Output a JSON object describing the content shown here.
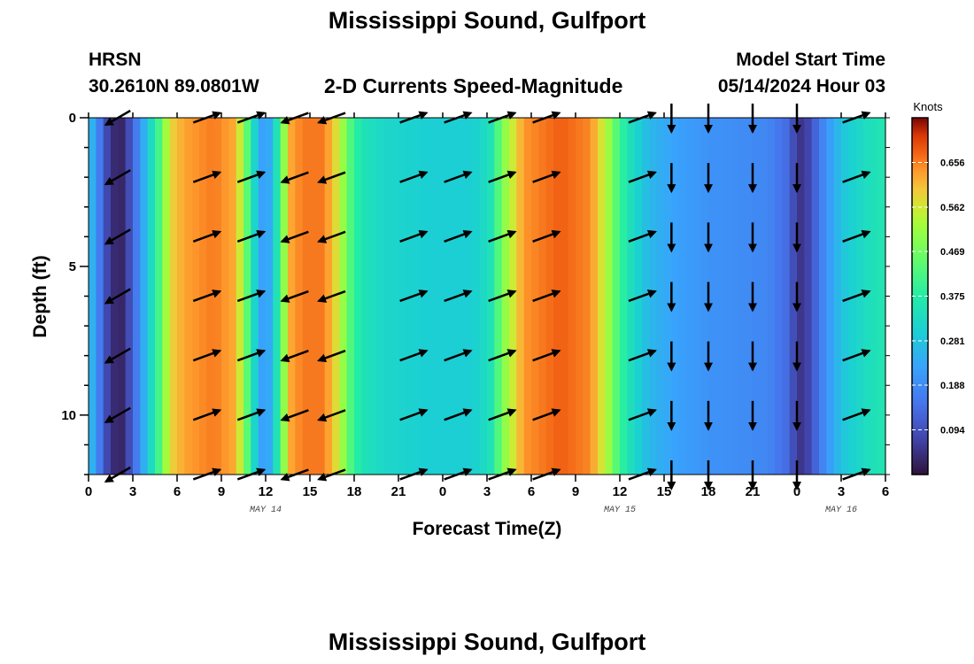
{
  "title": "Mississippi Sound, Gulfport",
  "bottom_title": "Mississippi Sound, Gulfport",
  "station": {
    "id": "HRSN",
    "coords": "30.2610N  89.0801W"
  },
  "subtitle": "2-D Currents Speed-Magnitude",
  "model_start": {
    "label": "Model Start Time",
    "value": "05/14/2024 Hour 03"
  },
  "chart_data": {
    "type": "heatmap",
    "xlabel": "Forecast Time(Z)",
    "ylabel": "Depth (ft)",
    "x_ticks": [
      "0",
      "3",
      "6",
      "9",
      "12",
      "15",
      "18",
      "21",
      "0",
      "3",
      "6",
      "9",
      "12",
      "15",
      "18",
      "21",
      "0",
      "3",
      "6"
    ],
    "date_labels": [
      {
        "text": "MAY 14",
        "hour": 12
      },
      {
        "text": "MAY 15",
        "hour": 36
      },
      {
        "text": "MAY 16",
        "hour": 51
      }
    ],
    "xlim": [
      0,
      54
    ],
    "y_ticks": [
      "0",
      "5",
      "10"
    ],
    "ylim": [
      0,
      12
    ],
    "colorbar": {
      "unit": "Knots",
      "range": [
        0,
        0.75
      ],
      "ticks": [
        "0.656",
        "0.562",
        "0.469",
        "0.375",
        "0.281",
        "0.188",
        "0.094"
      ]
    },
    "speed_profile_knots": [
      [
        0,
        0.3
      ],
      [
        0.4,
        0.22
      ],
      [
        1.0,
        0.12
      ],
      [
        1.5,
        0.04
      ],
      [
        2.3,
        0.03
      ],
      [
        3.0,
        0.12
      ],
      [
        3.6,
        0.22
      ],
      [
        4.2,
        0.32
      ],
      [
        4.8,
        0.42
      ],
      [
        5.5,
        0.58
      ],
      [
        6.5,
        0.63
      ],
      [
        8.5,
        0.66
      ],
      [
        10,
        0.62
      ],
      [
        10.5,
        0.5
      ],
      [
        11,
        0.38
      ],
      [
        11.5,
        0.25
      ],
      [
        12,
        0.2
      ],
      [
        12.5,
        0.28
      ],
      [
        13,
        0.42
      ],
      [
        13.6,
        0.62
      ],
      [
        14.5,
        0.66
      ],
      [
        16,
        0.66
      ],
      [
        17,
        0.55
      ],
      [
        17.8,
        0.42
      ],
      [
        18.5,
        0.35
      ],
      [
        20,
        0.32
      ],
      [
        23,
        0.3
      ],
      [
        26,
        0.3
      ],
      [
        27.2,
        0.34
      ],
      [
        28.2,
        0.5
      ],
      [
        29.5,
        0.64
      ],
      [
        32,
        0.68
      ],
      [
        34,
        0.65
      ],
      [
        35.2,
        0.52
      ],
      [
        36,
        0.4
      ],
      [
        37,
        0.32
      ],
      [
        38,
        0.26
      ],
      [
        40,
        0.22
      ],
      [
        42,
        0.2
      ],
      [
        44,
        0.19
      ],
      [
        46,
        0.18
      ],
      [
        47.5,
        0.13
      ],
      [
        48,
        0.05
      ],
      [
        48.6,
        0.06
      ],
      [
        49.2,
        0.12
      ],
      [
        50,
        0.2
      ],
      [
        51,
        0.28
      ],
      [
        52.5,
        0.33
      ],
      [
        54,
        0.36
      ]
    ],
    "arrow_depths_ft": [
      0,
      2,
      4,
      6,
      8,
      10,
      12
    ],
    "arrows": [
      {
        "hour": 2,
        "dir": "SW"
      },
      {
        "hour": 8,
        "dir": "ENE"
      },
      {
        "hour": 11,
        "dir": "ENE"
      },
      {
        "hour": 14,
        "dir": "WSW"
      },
      {
        "hour": 16.5,
        "dir": "WSW"
      },
      {
        "hour": 22,
        "dir": "ENE"
      },
      {
        "hour": 25,
        "dir": "ENE"
      },
      {
        "hour": 28,
        "dir": "ENE"
      },
      {
        "hour": 31,
        "dir": "ENE"
      },
      {
        "hour": 37.5,
        "dir": "ENE"
      },
      {
        "hour": 39.5,
        "dir": "S"
      },
      {
        "hour": 42,
        "dir": "S"
      },
      {
        "hour": 45,
        "dir": "S"
      },
      {
        "hour": 48,
        "dir": "S"
      },
      {
        "hour": 52,
        "dir": "ENE"
      }
    ]
  }
}
